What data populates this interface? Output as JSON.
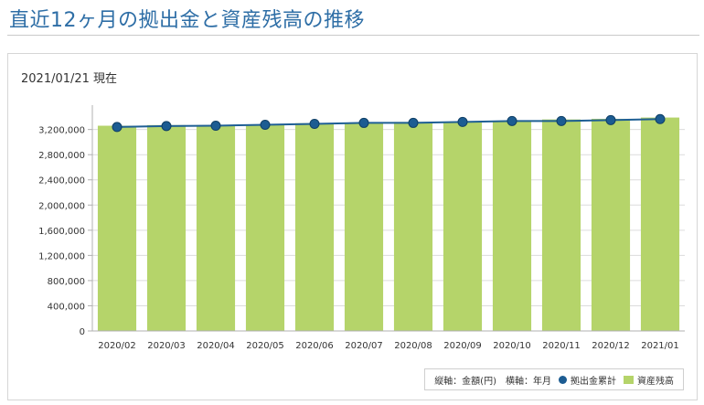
{
  "page": {
    "title": "直近12ヶ月の拠出金と資産残高の推移",
    "as_of": "2021/01/21 現在"
  },
  "legend": {
    "axis_note": "縦軸：金額(円)　横軸：年月",
    "series_contrib": "拠出金累計",
    "series_assets": "資産残高"
  },
  "colors": {
    "title": "#2e6ea6",
    "bar": "#b5d46a",
    "line": "#1f5f94",
    "marker": "#1c5c92",
    "grid": "#dcdcdc"
  },
  "chart_data": {
    "type": "bar",
    "categories": [
      "2020/02",
      "2020/03",
      "2020/04",
      "2020/05",
      "2020/06",
      "2020/07",
      "2020/08",
      "2020/09",
      "2020/10",
      "2020/11",
      "2020/12",
      "2021/01"
    ],
    "series": [
      {
        "name": "資産残高",
        "type": "bar",
        "values": [
          3260000,
          3270000,
          3270000,
          3280000,
          3300000,
          3310000,
          3320000,
          3320000,
          3340000,
          3360000,
          3370000,
          3390000
        ]
      },
      {
        "name": "拠出金累計",
        "type": "line",
        "values": [
          3240000,
          3255000,
          3260000,
          3275000,
          3290000,
          3305000,
          3305000,
          3320000,
          3335000,
          3335000,
          3350000,
          3365000
        ]
      }
    ],
    "yticks": [
      0,
      400000,
      800000,
      1200000,
      1600000,
      2000000,
      2400000,
      2800000,
      3200000
    ],
    "ytick_labels": [
      "0",
      "400,000",
      "800,000",
      "1,200,000",
      "1,600,000",
      "2,000,000",
      "2,400,000",
      "2,800,000",
      "3,200,000"
    ],
    "ylim": [
      0,
      3500000
    ],
    "grid": true,
    "legend_position": "bottom-right"
  }
}
